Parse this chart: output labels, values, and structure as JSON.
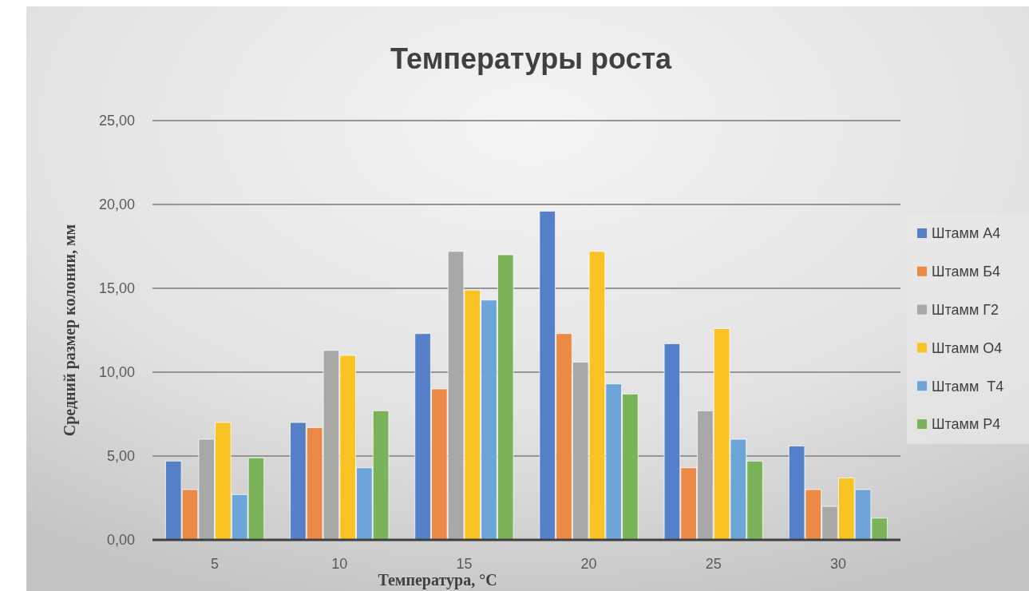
{
  "chart_data": {
    "type": "bar",
    "title": "Температуры роста",
    "xlabel": "Температура, °C",
    "ylabel": "Средний размер колонии, мм",
    "categories": [
      "5",
      "10",
      "15",
      "20",
      "25",
      "30"
    ],
    "series": [
      {
        "name": "Штамм А4",
        "color": "#5580c8",
        "values": [
          4.7,
          7.0,
          12.3,
          19.6,
          11.7,
          5.6
        ]
      },
      {
        "name": "Штамм Б4",
        "color": "#eb8a47",
        "values": [
          3.0,
          6.7,
          9.0,
          12.3,
          4.3,
          3.0
        ]
      },
      {
        "name": "Штамм Г2",
        "color": "#a8a8a8",
        "values": [
          6.0,
          11.3,
          17.2,
          10.6,
          7.7,
          2.0
        ]
      },
      {
        "name": "Штамм О4",
        "color": "#f8c323",
        "values": [
          7.0,
          11.0,
          14.9,
          17.2,
          12.6,
          3.7
        ]
      },
      {
        "name": "Штамм  Т4",
        "color": "#6ea5d8",
        "values": [
          2.7,
          4.3,
          14.3,
          9.3,
          6.0,
          3.0
        ]
      },
      {
        "name": "Штамм Р4",
        "color": "#7bb35a",
        "values": [
          4.9,
          7.7,
          17.0,
          8.7,
          4.7,
          1.3
        ]
      }
    ],
    "ylim": [
      0,
      25
    ],
    "yticks": [
      {
        "value": 0,
        "label": "0,00"
      },
      {
        "value": 5,
        "label": "5,00"
      },
      {
        "value": 10,
        "label": "10,00"
      },
      {
        "value": 15,
        "label": "15,00"
      },
      {
        "value": 20,
        "label": "20,00"
      },
      {
        "value": 25,
        "label": "25,00"
      }
    ],
    "grid": "y",
    "legend": "right"
  }
}
